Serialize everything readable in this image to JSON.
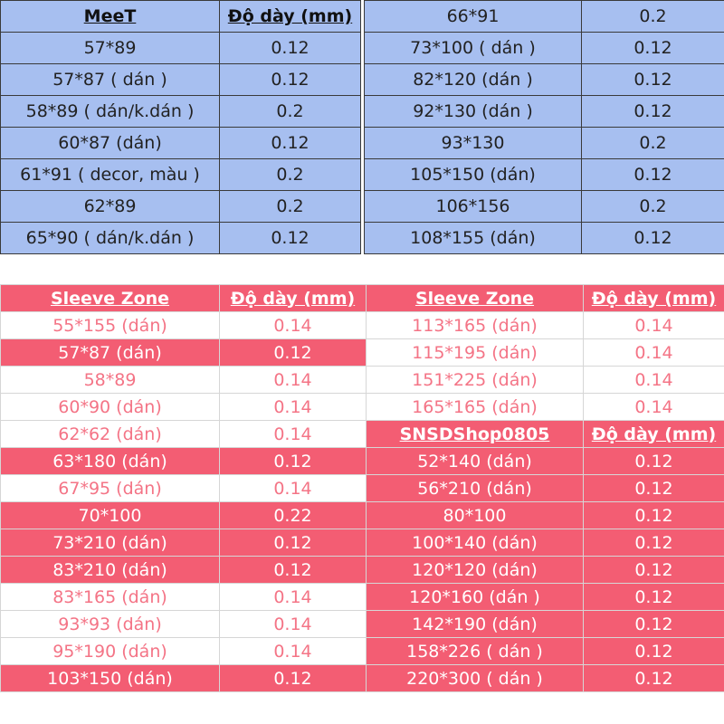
{
  "meet": {
    "header": {
      "size": "MeeT",
      "thickness": "Độ dày (mm)"
    },
    "rows": [
      {
        "size": "57*89",
        "thickness": "0.12"
      },
      {
        "size": "57*87 ( dán )",
        "thickness": "0.12"
      },
      {
        "size": "58*89 ( dán/k.dán )",
        "thickness": "0.2"
      },
      {
        "size": "60*87 (dán)",
        "thickness": "0.12"
      },
      {
        "size": "61*91 ( decor, màu )",
        "thickness": "0.2"
      },
      {
        "size": "62*89",
        "thickness": "0.2"
      },
      {
        "size": "65*90 ( dán/k.dán )",
        "thickness": "0.12"
      }
    ],
    "continued_rows": [
      {
        "size": "66*91",
        "thickness": "0.2"
      },
      {
        "size": "73*100 ( dán )",
        "thickness": "0.12"
      },
      {
        "size": "82*120 (dán )",
        "thickness": "0.12"
      },
      {
        "size": "92*130 (dán )",
        "thickness": "0.12"
      },
      {
        "size": "93*130",
        "thickness": "0.2"
      },
      {
        "size": "105*150 (dán)",
        "thickness": "0.12"
      },
      {
        "size": "106*156",
        "thickness": "0.2"
      },
      {
        "size": "108*155 (dán)",
        "thickness": "0.12"
      }
    ]
  },
  "sleeve_zone": {
    "header": {
      "size": "Sleeve Zone",
      "thickness": "Độ dày (mm)"
    },
    "left_rows": [
      {
        "size": "55*155 (dán)",
        "thickness": "0.14"
      },
      {
        "size": "57*87 (dán)",
        "thickness": "0.12"
      },
      {
        "size": "58*89",
        "thickness": "0.14"
      },
      {
        "size": "60*90 (dán)",
        "thickness": "0.14"
      },
      {
        "size": "62*62 (dán)",
        "thickness": "0.14"
      },
      {
        "size": "63*180 (dán)",
        "thickness": "0.12"
      },
      {
        "size": "67*95 (dán)",
        "thickness": "0.14"
      },
      {
        "size": "70*100",
        "thickness": "0.22"
      },
      {
        "size": "73*210 (dán)",
        "thickness": "0.12"
      },
      {
        "size": "83*210 (dán)",
        "thickness": "0.12"
      },
      {
        "size": "83*165 (dán)",
        "thickness": "0.14"
      },
      {
        "size": "93*93 (dán)",
        "thickness": "0.14"
      },
      {
        "size": "95*190 (dán)",
        "thickness": "0.14"
      },
      {
        "size": "103*150 (dán)",
        "thickness": "0.12"
      }
    ],
    "right_header": {
      "size": "Sleeve Zone",
      "thickness": "Độ dày (mm)"
    },
    "right_rows": [
      {
        "size": "113*165 (dán)",
        "thickness": "0.14"
      },
      {
        "size": "115*195 (dán)",
        "thickness": "0.14"
      },
      {
        "size": "151*225 (dán)",
        "thickness": "0.14"
      },
      {
        "size": "165*165 (dán)",
        "thickness": "0.14"
      }
    ]
  },
  "snsd": {
    "header": {
      "size": "SNSDShop0805",
      "thickness": "Độ dày (mm)"
    },
    "rows": [
      {
        "size": "52*140 (dán)",
        "thickness": "0.12"
      },
      {
        "size": "56*210 (dán)",
        "thickness": "0.12"
      },
      {
        "size": "80*100",
        "thickness": "0.12"
      },
      {
        "size": "100*140 (dán)",
        "thickness": "0.12"
      },
      {
        "size": "120*120 (dán)",
        "thickness": "0.12"
      },
      {
        "size": "120*160 (dán )",
        "thickness": "0.12"
      },
      {
        "size": "142*190 (dán)",
        "thickness": "0.12"
      },
      {
        "size": "158*226 ( dán )",
        "thickness": "0.12"
      },
      {
        "size": "220*300 ( dán )",
        "thickness": "0.12"
      }
    ]
  },
  "colors": {
    "blue_fill": "#a7bff0",
    "pink_fill": "#f35d73",
    "pink_text": "#f47486"
  }
}
